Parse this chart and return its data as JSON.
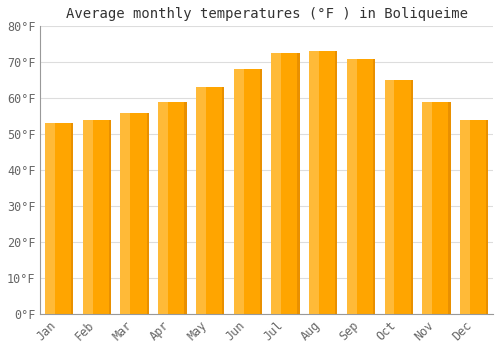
{
  "title": "Average monthly temperatures (°F ) in Boliqueime",
  "months": [
    "Jan",
    "Feb",
    "Mar",
    "Apr",
    "May",
    "Jun",
    "Jul",
    "Aug",
    "Sep",
    "Oct",
    "Nov",
    "Dec"
  ],
  "values": [
    53,
    54,
    56,
    59,
    63,
    68,
    72.5,
    73,
    71,
    65,
    59,
    54
  ],
  "bar_color_main": "#FFA500",
  "bar_color_light": "#FFD070",
  "bar_color_dark": "#E08800",
  "background_color": "#ffffff",
  "ylim": [
    0,
    80
  ],
  "yticks": [
    0,
    10,
    20,
    30,
    40,
    50,
    60,
    70,
    80
  ],
  "grid_color": "#dddddd",
  "title_fontsize": 10,
  "tick_fontsize": 8.5
}
